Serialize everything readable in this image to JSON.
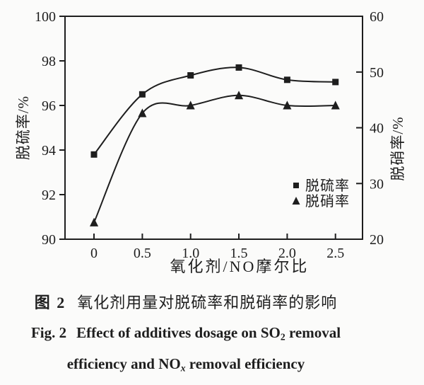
{
  "page": {
    "background": "#fbfbfa",
    "ink": "#1e1e1e"
  },
  "chart_data": {
    "type": "line",
    "x": [
      0,
      0.5,
      1.0,
      1.5,
      2.0,
      2.5
    ],
    "series": [
      {
        "name": "脱硫率",
        "axis": "left",
        "marker": "square",
        "color": "#1e1e1e",
        "values": [
          93.8,
          96.5,
          97.35,
          97.7,
          97.15,
          97.05
        ]
      },
      {
        "name": "脱硝率",
        "axis": "right",
        "marker": "triangle",
        "color": "#1e1e1e",
        "values": [
          23.0,
          42.6,
          44.0,
          45.8,
          44.0,
          44.0
        ]
      }
    ],
    "x_axis": {
      "label": "氧化剂/NO摩尔比",
      "ticks": [
        0,
        0.5,
        1.0,
        1.5,
        2.0,
        2.5
      ],
      "tick_labels": [
        "0",
        "0.5",
        "1.0",
        "1.5",
        "2.0",
        "2.5"
      ],
      "display_range": [
        -0.3,
        2.78
      ]
    },
    "left_axis": {
      "label": "脱硫率/%",
      "range": [
        90,
        100
      ],
      "ticks": [
        90,
        92,
        94,
        96,
        98,
        100
      ],
      "tick_labels": [
        "90",
        "92",
        "94",
        "96",
        "98",
        "100"
      ]
    },
    "right_axis": {
      "label": "脱硝率/%",
      "range": [
        20,
        60
      ],
      "ticks": [
        20,
        30,
        40,
        50,
        60
      ],
      "tick_labels": [
        "20",
        "30",
        "40",
        "50",
        "60"
      ]
    },
    "legend": {
      "position": "inside-lower-right",
      "items": [
        {
          "marker": "square",
          "label": "脱硫率"
        },
        {
          "marker": "triangle",
          "label": "脱硝率"
        }
      ]
    },
    "grid": false
  },
  "caption": {
    "cn": {
      "fig_label": "图 2",
      "text": "氧化剂用量对脱硫率和脱硝率的影响"
    },
    "en_line1": {
      "fig_label": "Fig. 2",
      "pre": "Effect of additives dosage on SO",
      "sub": "2",
      "post": " removal"
    },
    "en_line2": {
      "pre": "efficiency and NO",
      "sub": "x",
      "post": " removal efficiency"
    }
  }
}
